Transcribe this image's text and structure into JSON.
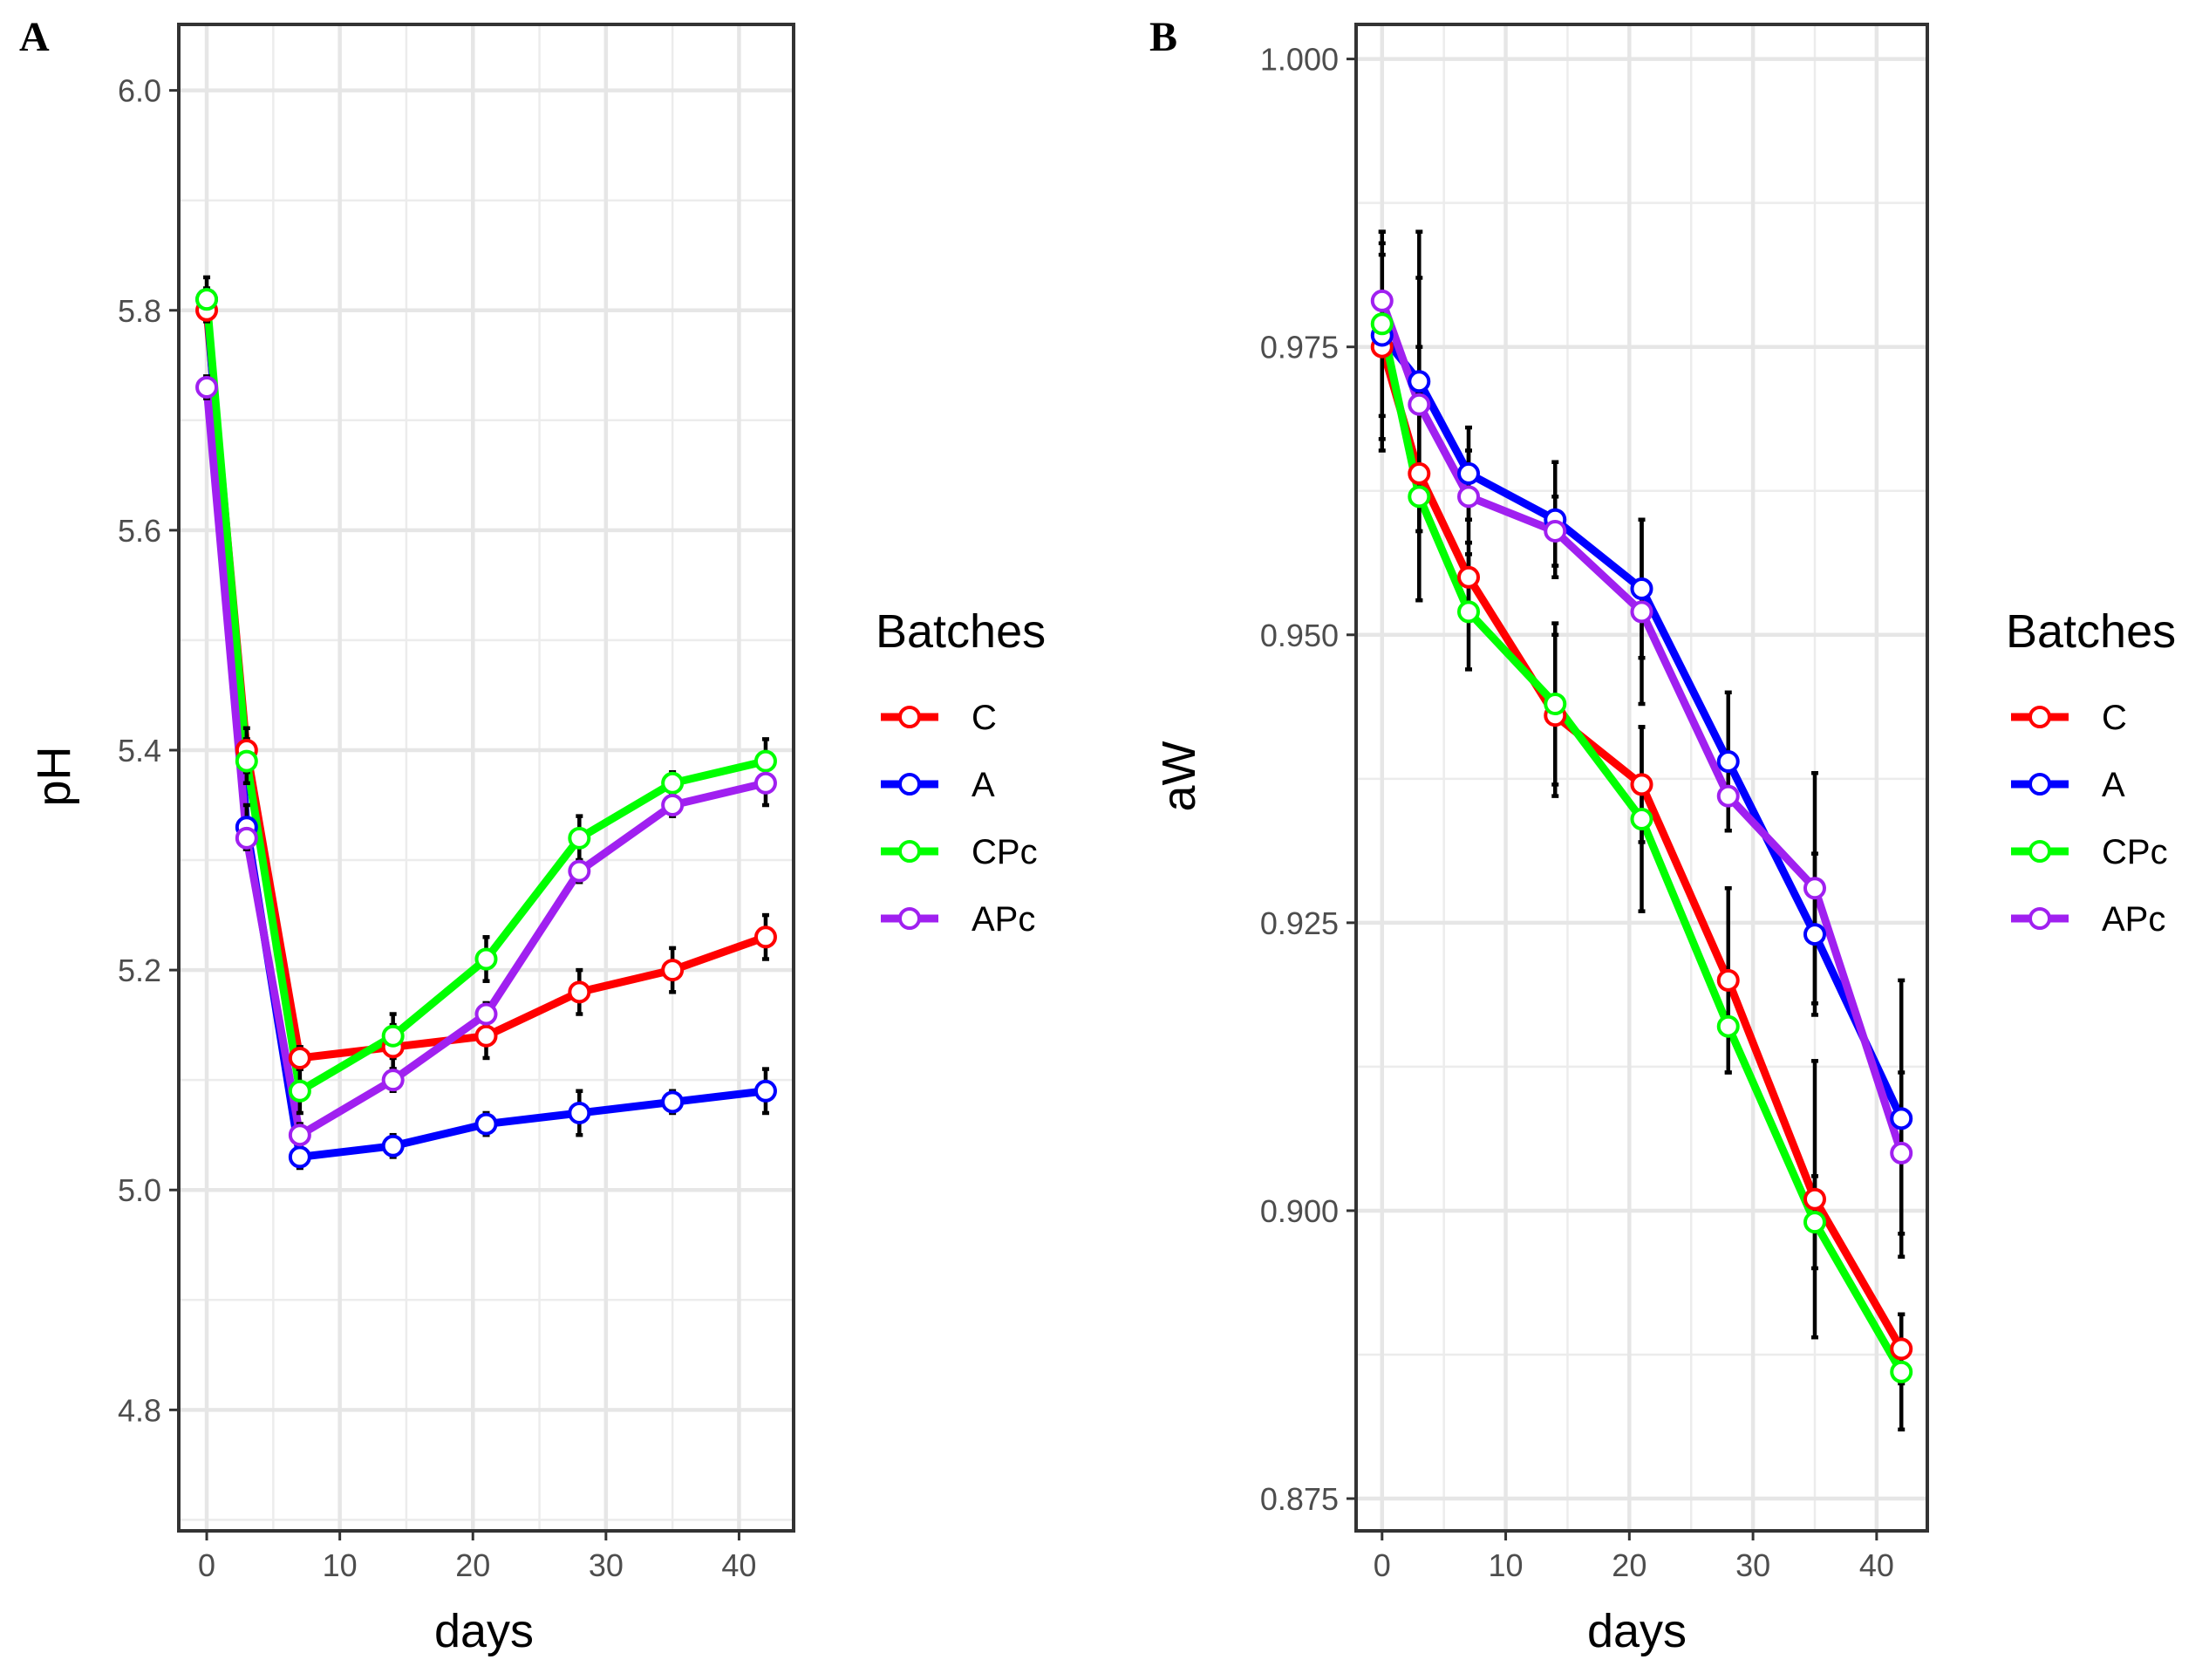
{
  "chart_data": [
    {
      "panel": "A",
      "type": "line",
      "xlabel": "days",
      "ylabel": "pH",
      "xlim": [
        -2.1,
        44.1
      ],
      "ylim": [
        4.69,
        6.06
      ],
      "xticks": [
        0,
        10,
        20,
        30,
        40
      ],
      "xtick_labels": [
        "0",
        "10",
        "20",
        "30",
        "40"
      ],
      "yticks": [
        4.8,
        5.0,
        5.2,
        5.4,
        5.6,
        5.8,
        6.0
      ],
      "ytick_labels": [
        "4.8",
        "5.0",
        "5.2",
        "5.4",
        "5.6",
        "5.8",
        "6.0"
      ],
      "legend": {
        "title": "Batches",
        "position": "right"
      },
      "x": [
        0,
        3,
        7,
        14,
        21,
        28,
        35,
        42
      ],
      "series": [
        {
          "name": "C",
          "color": "#ff0000",
          "values": [
            5.8,
            5.4,
            5.12,
            5.13,
            5.14,
            5.18,
            5.2,
            5.23
          ],
          "errors": [
            0.01,
            0.02,
            0.01,
            0.02,
            0.02,
            0.02,
            0.02,
            0.02
          ]
        },
        {
          "name": "A",
          "color": "#0000ff",
          "values": [
            5.81,
            5.33,
            5.03,
            5.04,
            5.06,
            5.07,
            5.08,
            5.09
          ],
          "errors": [
            0.01,
            0.02,
            0.01,
            0.01,
            0.01,
            0.02,
            0.01,
            0.02
          ]
        },
        {
          "name": "CPc",
          "color": "#00ff00",
          "values": [
            5.81,
            5.39,
            5.09,
            5.14,
            5.21,
            5.32,
            5.37,
            5.39
          ],
          "errors": [
            0.02,
            0.02,
            0.02,
            0.02,
            0.02,
            0.02,
            0.01,
            0.02
          ]
        },
        {
          "name": "APc",
          "color": "#a020f0",
          "values": [
            5.73,
            5.32,
            5.05,
            5.1,
            5.16,
            5.29,
            5.35,
            5.37
          ],
          "errors": [
            0.01,
            0.01,
            0.01,
            0.01,
            0.01,
            0.01,
            0.01,
            0.02
          ]
        }
      ]
    },
    {
      "panel": "B",
      "type": "line",
      "xlabel": "days",
      "ylabel": "aW",
      "xlim": [
        -2.1,
        44.1
      ],
      "ylim": [
        0.8722,
        1.003
      ],
      "xticks": [
        0,
        10,
        20,
        30,
        40
      ],
      "xtick_labels": [
        "0",
        "10",
        "20",
        "30",
        "40"
      ],
      "yticks": [
        0.875,
        0.9,
        0.925,
        0.95,
        0.975,
        1.0
      ],
      "ytick_labels": [
        "0.875",
        "0.900",
        "0.925",
        "0.950",
        "0.975",
        "1.000"
      ],
      "legend": {
        "title": "Batches",
        "position": "right"
      },
      "x": [
        0,
        3,
        7,
        14,
        21,
        28,
        35,
        42
      ],
      "series": [
        {
          "name": "C",
          "color": "#ff0000",
          "values": [
            0.975,
            0.964,
            0.955,
            0.943,
            0.937,
            0.92,
            0.901,
            0.888
          ],
          "errors": [
            0.009,
            0.011,
            0.003,
            0.007,
            0.005,
            0.008,
            0.012,
            0.003
          ]
        },
        {
          "name": "A",
          "color": "#0000ff",
          "values": [
            0.976,
            0.972,
            0.964,
            0.96,
            0.954,
            0.939,
            0.924,
            0.908
          ],
          "errors": [
            0.009,
            0.013,
            0.004,
            0.005,
            0.006,
            0.006,
            0.007,
            0.012
          ]
        },
        {
          "name": "CPc",
          "color": "#00ff00",
          "values": [
            0.977,
            0.962,
            0.952,
            0.944,
            0.934,
            0.916,
            0.899,
            0.886
          ],
          "errors": [
            0.008,
            0.009,
            0.005,
            0.007,
            0.008,
            0.004,
            0.004,
            0.005
          ]
        },
        {
          "name": "APc",
          "color": "#a020f0",
          "values": [
            0.979,
            0.97,
            0.962,
            0.959,
            0.952,
            0.936,
            0.928,
            0.905
          ],
          "errors": [
            0.004,
            0.011,
            0.004,
            0.003,
            0.008,
            0.003,
            0.01,
            0.007
          ]
        }
      ]
    }
  ]
}
